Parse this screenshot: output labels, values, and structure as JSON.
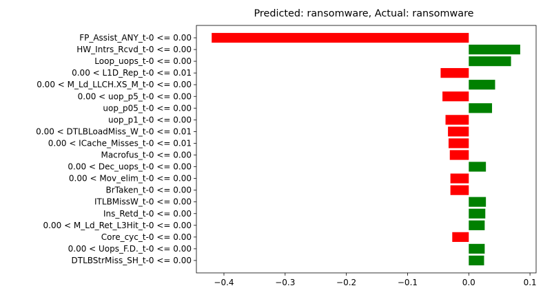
{
  "chart_data": {
    "type": "bar",
    "orientation": "horizontal",
    "title": "Predicted: ransomware, Actual: ransomware",
    "xlabel": "",
    "ylabel": "",
    "xlim": [
      -0.445,
      0.11
    ],
    "xticks": [
      -0.4,
      -0.3,
      -0.2,
      -0.1,
      0.0,
      0.1
    ],
    "xtick_labels": [
      "−0.4",
      "−0.3",
      "−0.2",
      "−0.1",
      "0.0",
      "0.1"
    ],
    "grid": false,
    "legend": "none",
    "colors": {
      "positive": "#008000",
      "negative": "#ff0000"
    },
    "categories": [
      "FP_Assist_ANY_t-0 <= 0.00",
      "HW_Intrs_Rcvd_t-0 <= 0.00",
      "Loop_uops_t-0 <= 0.00",
      "0.00 < L1D_Rep_t-0 <= 0.01",
      "0.00 < M_Ld_LLCH.XS_M_t-0 <= 0.00",
      "0.00 < uop_p5_t-0 <= 0.00",
      "uop_p05_t-0 <= 0.00",
      "uop_p1_t-0 <= 0.00",
      "0.00 < DTLBLoadMiss_W_t-0 <= 0.01",
      "0.00 < ICache_Misses_t-0 <= 0.01",
      "Macrofus_t-0 <= 0.00",
      "0.00 < Dec_uops_t-0 <= 0.00",
      "0.00 < Mov_elim_t-0 <= 0.00",
      "BrTaken_t-0 <= 0.00",
      "ITLBMissW_t-0 <= 0.00",
      "Ins_Retd_t-0 <= 0.00",
      "0.00 < M_Ld_Ret_L3Hit_t-0 <= 0.00",
      "Core_cyc_t-0 <= 0.00",
      "0.00 < Uops_F.D._t-0 <= 0.00",
      "DTLBStrMiss_SH_t-0 <= 0.00"
    ],
    "values": [
      -0.42,
      0.084,
      0.069,
      -0.046,
      0.043,
      -0.043,
      0.038,
      -0.038,
      -0.034,
      -0.033,
      -0.031,
      0.028,
      -0.03,
      -0.03,
      0.028,
      0.027,
      0.026,
      -0.027,
      0.026,
      0.025
    ]
  }
}
